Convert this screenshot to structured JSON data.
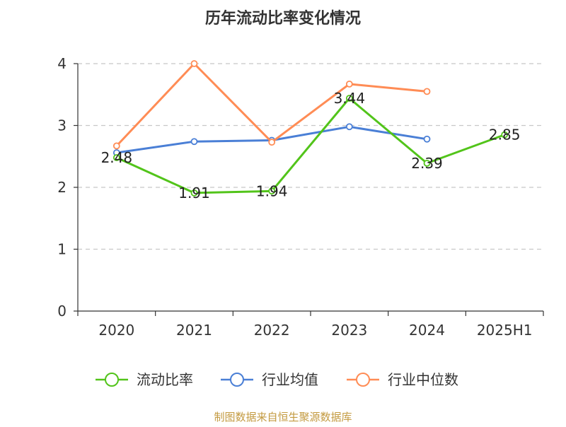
{
  "chart_data": {
    "type": "line",
    "title": "历年流动比率变化情况",
    "categories": [
      "2020",
      "2021",
      "2022",
      "2023",
      "2024",
      "2025H1"
    ],
    "ylim": [
      0,
      4
    ],
    "yticks": [
      0,
      1,
      2,
      3,
      4
    ],
    "grid": true,
    "legend_position": "bottom",
    "series": [
      {
        "name": "流动比率",
        "color": "#52c41a",
        "values": [
          2.48,
          1.91,
          1.94,
          3.44,
          2.39,
          2.85
        ],
        "labels": [
          "2.48",
          "1.91",
          "1.94",
          "3.44",
          "2.39",
          "2.85"
        ]
      },
      {
        "name": "行业均值",
        "color": "#4a7fd6",
        "values": [
          2.56,
          2.74,
          2.76,
          2.98,
          2.78,
          null
        ]
      },
      {
        "name": "行业中位数",
        "color": "#ff8c55",
        "values": [
          2.67,
          4.0,
          2.73,
          3.67,
          3.55,
          null
        ]
      }
    ]
  },
  "source": "制图数据来自恒生聚源数据库"
}
